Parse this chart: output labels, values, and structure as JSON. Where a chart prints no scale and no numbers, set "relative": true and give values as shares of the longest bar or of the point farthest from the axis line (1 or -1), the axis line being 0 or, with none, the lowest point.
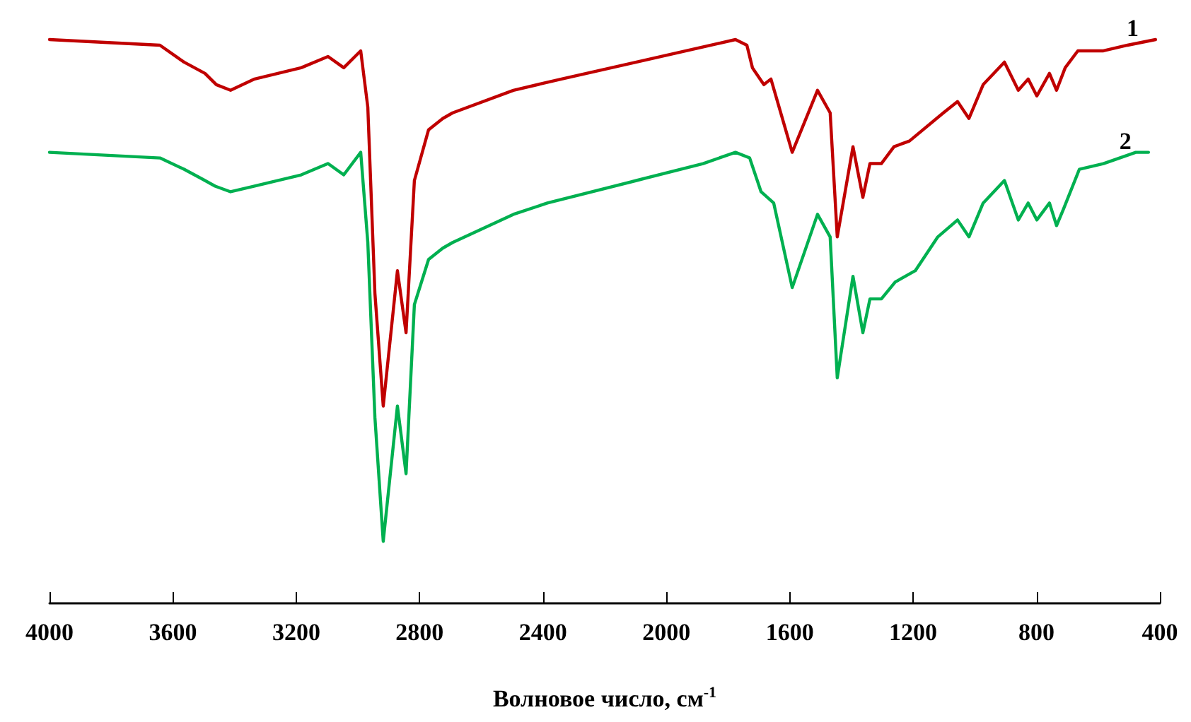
{
  "chart_data": {
    "type": "line",
    "relative": true,
    "xlabel": "Волновое число, см$^{-1}$",
    "xlim": [
      4000,
      400
    ],
    "xticks": [
      4000,
      3600,
      3200,
      2800,
      2400,
      2000,
      1600,
      1200,
      800,
      400
    ],
    "marker": "none",
    "line_style": "solid",
    "grid": false,
    "series": [
      {
        "name": "1",
        "color": "#c00000",
        "x": [
          4000,
          3642,
          3564,
          3496,
          3459,
          3413,
          3335,
          3184,
          3097,
          3046,
          2991,
          2968,
          2945,
          2918,
          2872,
          2844,
          2817,
          2771,
          2725,
          2693,
          2496,
          2340,
          2097,
          1776,
          1739,
          1721,
          1684,
          1661,
          1592,
          1510,
          1469,
          1446,
          1395,
          1363,
          1340,
          1303,
          1262,
          1212,
          1102,
          1056,
          1019,
          973,
          904,
          859,
          827,
          799,
          758,
          735,
          707,
          666,
          583,
          505,
          414
        ],
        "values": [
          1.0,
          0.99,
          0.96,
          0.94,
          0.92,
          0.91,
          0.93,
          0.95,
          0.97,
          0.95,
          0.98,
          0.88,
          0.55,
          0.35,
          0.59,
          0.48,
          0.75,
          0.84,
          0.86,
          0.87,
          0.91,
          0.93,
          0.96,
          1.0,
          0.99,
          0.95,
          0.92,
          0.93,
          0.8,
          0.91,
          0.87,
          0.65,
          0.81,
          0.72,
          0.78,
          0.78,
          0.81,
          0.82,
          0.87,
          0.89,
          0.86,
          0.92,
          0.96,
          0.91,
          0.93,
          0.9,
          0.94,
          0.91,
          0.95,
          0.98,
          0.98,
          0.99,
          1.0
        ]
      },
      {
        "name": "2",
        "color": "#00b050",
        "x": [
          4000,
          3642,
          3564,
          3496,
          3463,
          3413,
          3335,
          3184,
          3097,
          3046,
          2991,
          2968,
          2945,
          2918,
          2872,
          2844,
          2817,
          2771,
          2725,
          2693,
          2496,
          2386,
          2097,
          1881,
          1776,
          1730,
          1693,
          1652,
          1592,
          1510,
          1469,
          1446,
          1395,
          1363,
          1340,
          1303,
          1258,
          1193,
          1120,
          1056,
          1019,
          973,
          904,
          859,
          827,
          799,
          758,
          735,
          712,
          661,
          583,
          478,
          437
        ],
        "values": [
          0.8,
          0.79,
          0.77,
          0.75,
          0.74,
          0.73,
          0.74,
          0.76,
          0.78,
          0.76,
          0.8,
          0.64,
          0.33,
          0.11,
          0.35,
          0.23,
          0.53,
          0.61,
          0.63,
          0.64,
          0.69,
          0.71,
          0.75,
          0.78,
          0.8,
          0.79,
          0.73,
          0.71,
          0.56,
          0.69,
          0.65,
          0.4,
          0.58,
          0.48,
          0.54,
          0.54,
          0.57,
          0.59,
          0.65,
          0.68,
          0.65,
          0.71,
          0.75,
          0.68,
          0.71,
          0.68,
          0.71,
          0.67,
          0.7,
          0.77,
          0.78,
          0.8,
          0.8
        ]
      }
    ]
  }
}
